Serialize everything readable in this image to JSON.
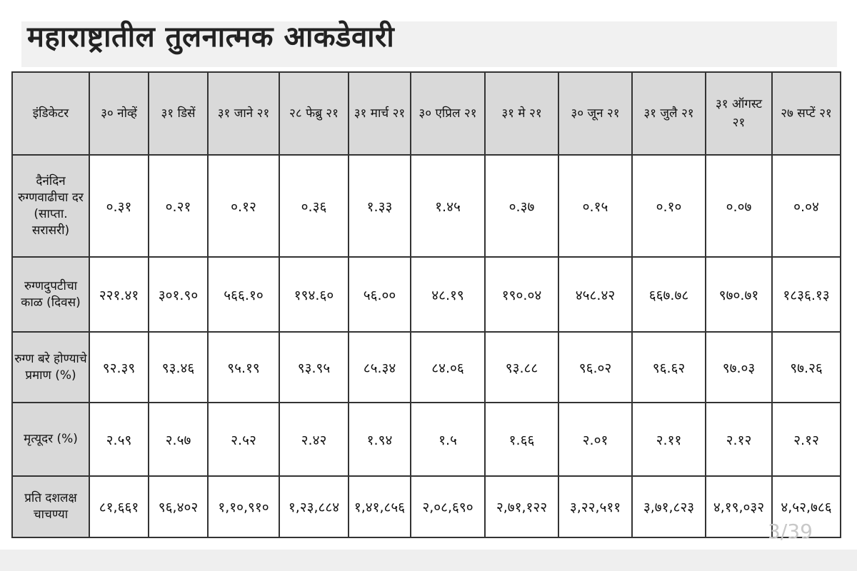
{
  "title": "महाराष्ट्रातील तुलनात्मक आकडेवारी",
  "header": {
    "indicator": "इंडिकेटर",
    "dates": [
      "३० नोव्हें",
      "३१ डिसें",
      "३१ जाने २१",
      "२८ फेब्रु २१",
      "३१ मार्च २१",
      "३० एप्रिल २१",
      "३१ मे २१",
      "३० जून २१",
      "३१ जुलै २१",
      "३१ ऑगस्ट २१",
      "२७ सप्टें २१"
    ]
  },
  "rows": [
    {
      "label": "दैनंदिन रुग्णवाढीचा दर (साप्ता. सरासरी)",
      "values": [
        "०.३१",
        "०.२१",
        "०.१२",
        "०.३६",
        "१.३३",
        "१.४५",
        "०.३७",
        "०.१५",
        "०.१०",
        "०.०७",
        "०.०४"
      ]
    },
    {
      "label": "रुग्णदुपटीचा काळ (दिवस)",
      "values": [
        "२२१.४१",
        "३०१.९०",
        "५६६.१०",
        "१९४.६०",
        "५६.००",
        "४८.१९",
        "१९०.०४",
        "४५८.४२",
        "६६७.७८",
        "९७०.७१",
        "१८३६.१३"
      ]
    },
    {
      "label": "रुग्ण बरे होण्याचे प्रमाण (%)",
      "values": [
        "९२.३९",
        "९३.४६",
        "९५.१९",
        "९३.९५",
        "८५.३४",
        "८४.०६",
        "९३.८८",
        "९६.०२",
        "९६.६२",
        "९७.०३",
        "९७.२६"
      ]
    },
    {
      "label": "मृत्यूदर (%)",
      "values": [
        "२.५९",
        "२.५७",
        "२.५२",
        "२.४२",
        "१.९४",
        "१.५",
        "१.६६",
        "२.०१",
        "२.११",
        "२.१२",
        "२.१२"
      ]
    },
    {
      "label": "प्रति दशलक्ष चाचण्या",
      "values": [
        "८१,६६१",
        "९६,४०२",
        "१,१०,९१०",
        "१,२३,८८४",
        "१,४१,८५६",
        "२,०८,६९०",
        "२,७१,१२२",
        "३,२२,५११",
        "३,७१,८२३",
        "४,१९,०३२",
        "४,५२,७८६"
      ]
    }
  ],
  "page_indicator": "3/39"
}
